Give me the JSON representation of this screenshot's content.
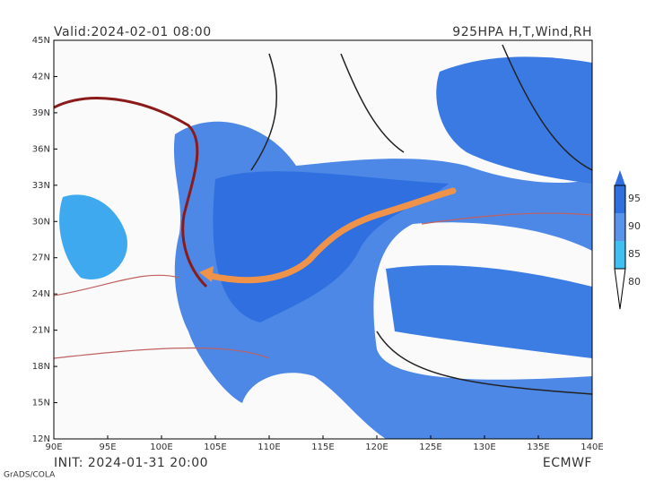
{
  "header": {
    "valid": "Valid:2024-02-01 08:00",
    "product": "925HPA H,T,Wind,RH"
  },
  "map": {
    "lat_labels": [
      "45N",
      "42N",
      "39N",
      "36N",
      "33N",
      "30N",
      "27N",
      "24N",
      "21N",
      "18N",
      "15N",
      "12N"
    ],
    "lon_labels": [
      "90E",
      "95E",
      "100E",
      "105E",
      "110E",
      "115E",
      "120E",
      "125E",
      "130E",
      "135E",
      "140E"
    ]
  },
  "colorbar": {
    "labels": [
      "95",
      "90",
      "85",
      "80"
    ]
  },
  "footer": {
    "init": "INIT: 2024-01-31 20:00",
    "model": "ECMWF",
    "credit": "GrADS/COLA"
  }
}
